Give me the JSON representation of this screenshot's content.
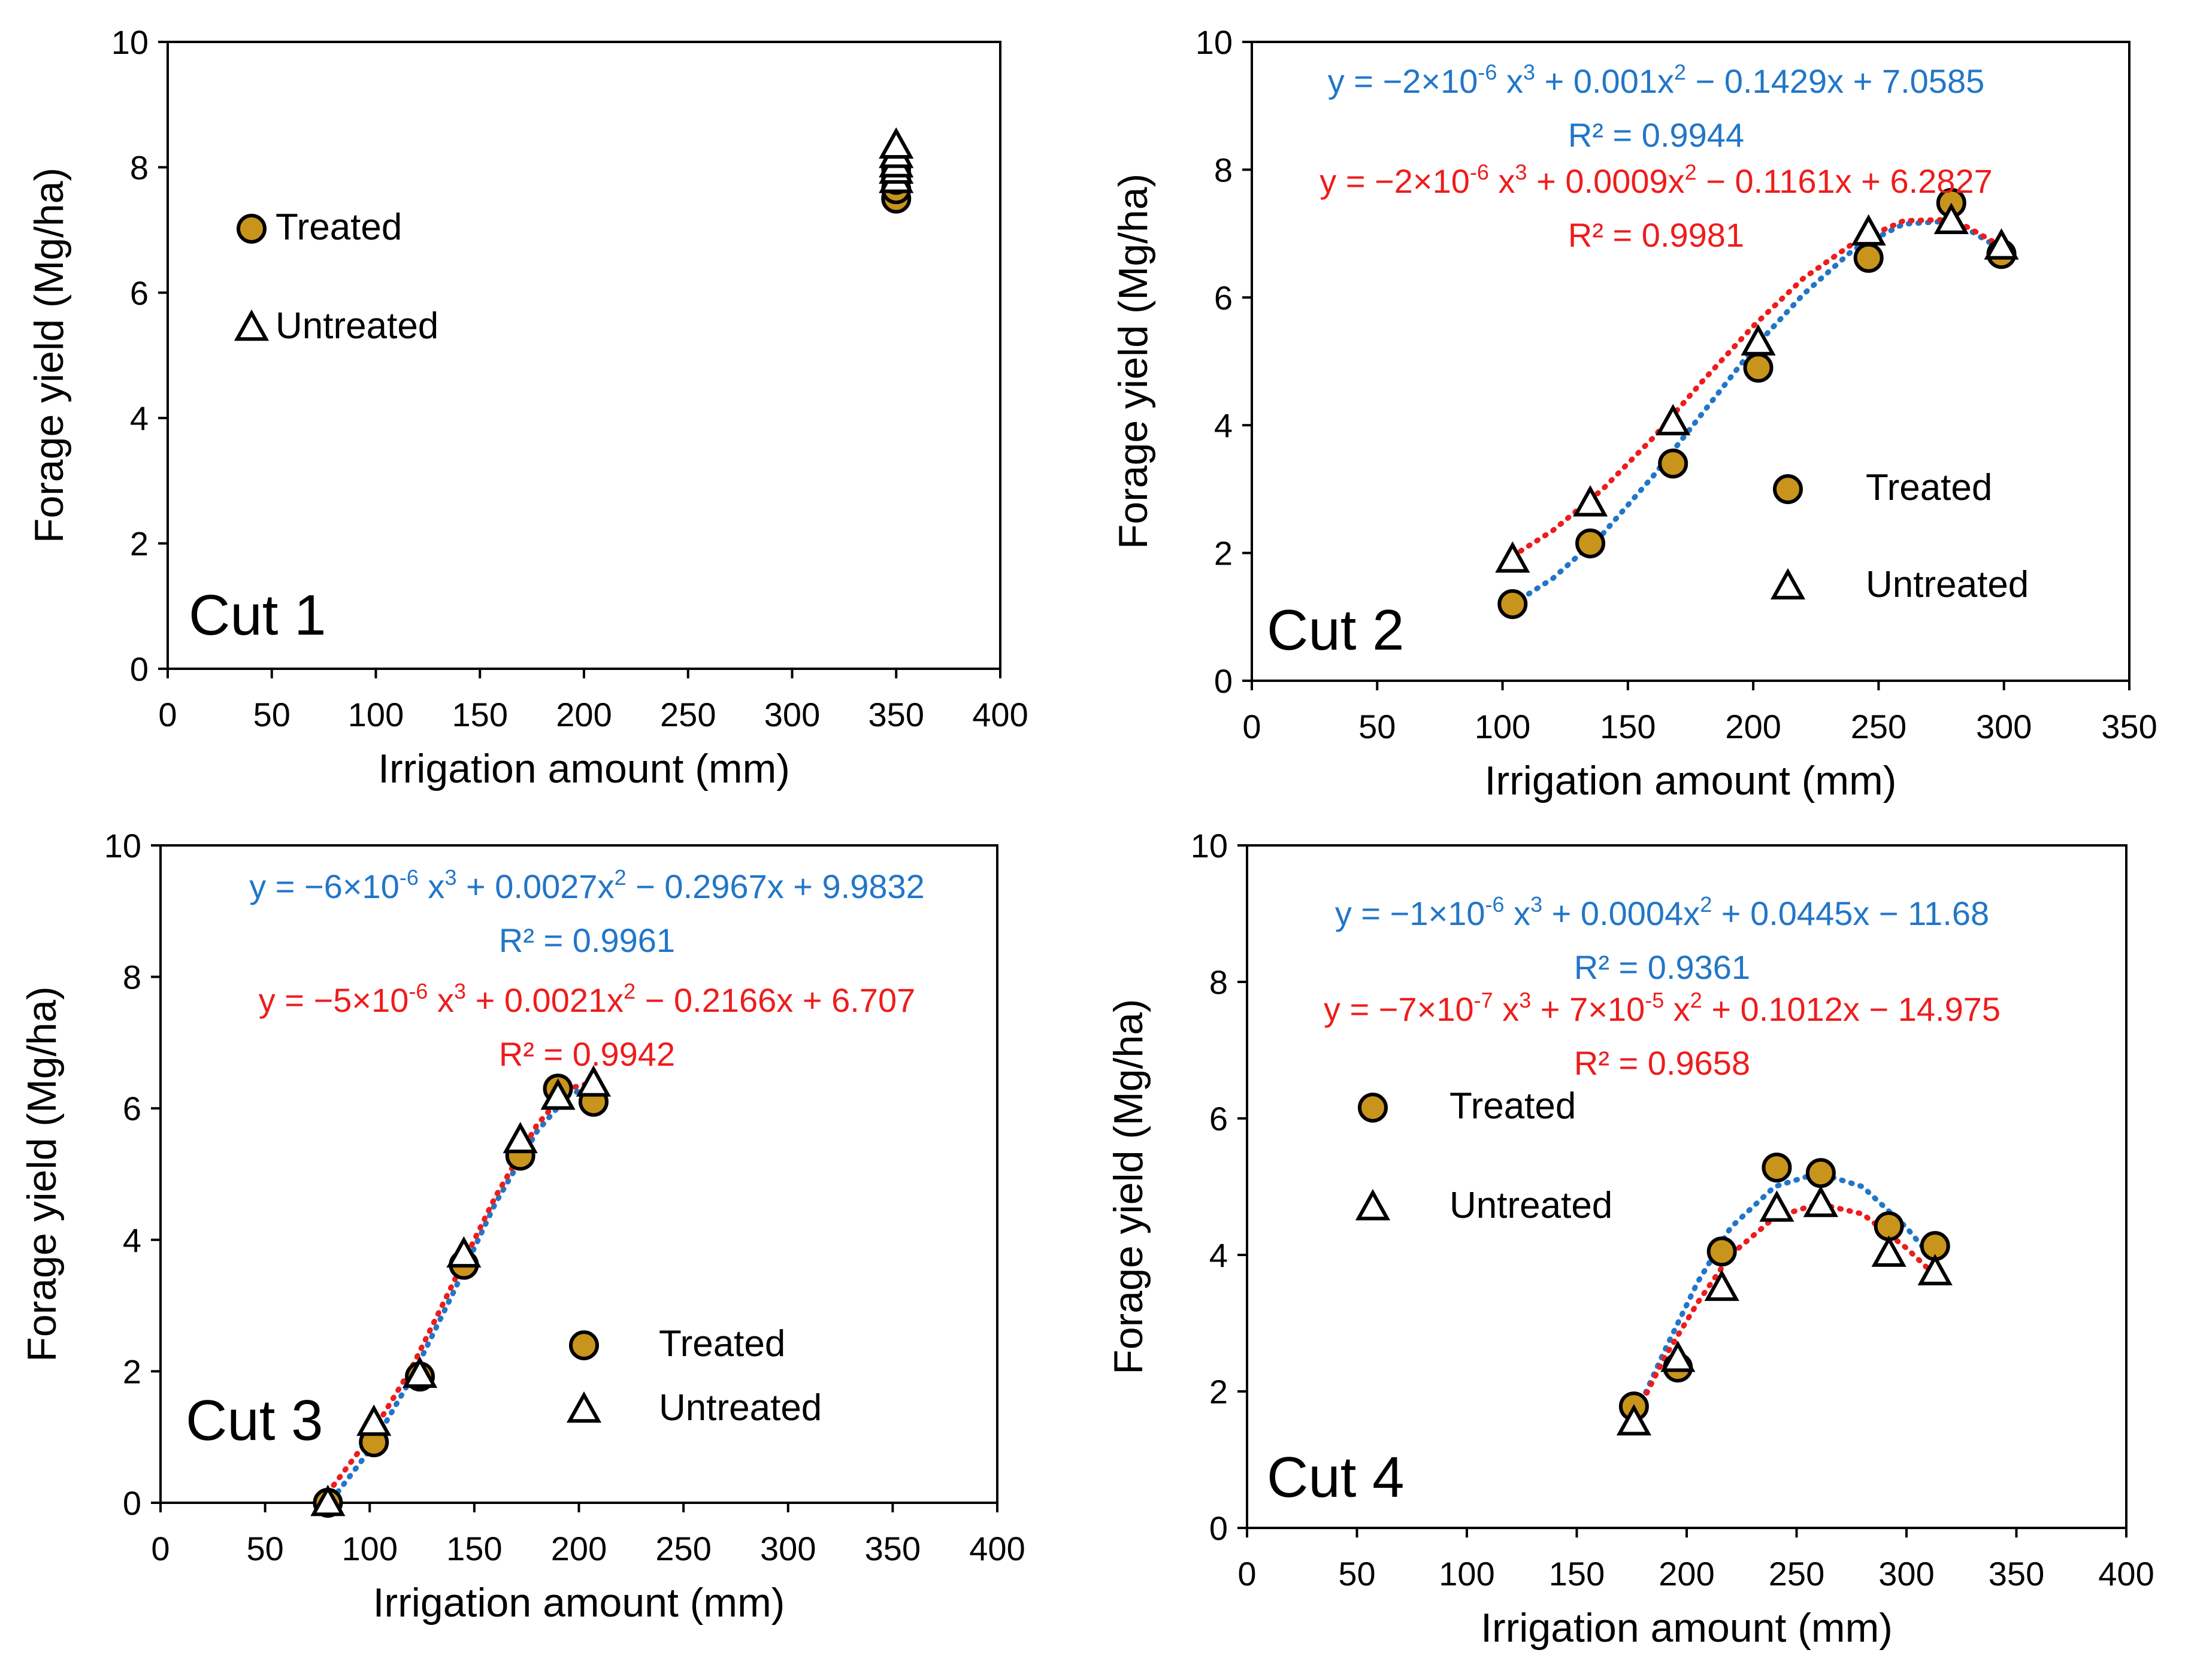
{
  "figure": {
    "xlabel": "Irrigation amount (mm)",
    "ylabel": "Forage yield (Mg/ha)",
    "colors": {
      "treated_fill": "#c8941c",
      "untreated_fill": "#ffffff",
      "treated_fit": "#2176c8",
      "untreated_fit": "#ee1c1c"
    }
  },
  "chart_data": [
    {
      "type": "scatter",
      "title": "Cut 1",
      "xlabel": "Irrigation amount (mm)",
      "ylabel": "Forage yield (Mg/ha)",
      "xlim": [
        0,
        400
      ],
      "ylim": [
        0,
        10
      ],
      "xticks": [
        "0",
        "50",
        "100",
        "150",
        "200",
        "250",
        "300",
        "350",
        "400"
      ],
      "yticks": [
        "0",
        "2",
        "4",
        "6",
        "8",
        "10"
      ],
      "legend_position": "left",
      "series": [
        {
          "name": "Treated",
          "marker": "circle",
          "x": [
            350,
            350,
            350,
            350,
            350
          ],
          "y": [
            7.5,
            7.65,
            7.8,
            7.9,
            8.0
          ]
        },
        {
          "name": "Untreated",
          "marker": "triangle",
          "x": [
            350,
            350,
            350,
            350,
            350
          ],
          "y": [
            7.8,
            7.95,
            8.05,
            8.2,
            8.35
          ]
        }
      ],
      "fits": []
    },
    {
      "type": "scatter",
      "title": "Cut 2",
      "xlabel": "Irrigation amount (mm)",
      "ylabel": "Forage yield (Mg/ha)",
      "xlim": [
        0,
        350
      ],
      "ylim": [
        0,
        10
      ],
      "xticks": [
        "0",
        "50",
        "100",
        "150",
        "200",
        "250",
        "300",
        "350"
      ],
      "yticks": [
        "0",
        "2",
        "4",
        "6",
        "8",
        "10"
      ],
      "legend_position": "lower-right",
      "series": [
        {
          "name": "Treated",
          "marker": "circle",
          "x": [
            104,
            135,
            168,
            202,
            246,
            279,
            299
          ],
          "y": [
            1.2,
            2.15,
            3.4,
            4.9,
            6.62,
            7.48,
            6.68
          ]
        },
        {
          "name": "Untreated",
          "marker": "triangle",
          "x": [
            104,
            135,
            168,
            202,
            246,
            279,
            299
          ],
          "y": [
            1.9,
            2.78,
            4.05,
            5.3,
            7.02,
            7.2,
            6.8
          ]
        }
      ],
      "fits": [
        {
          "series": "Treated",
          "equation": "y = −2×10^{-6} x^{3} + 0.001x^{2} − 0.1429x + 7.0585",
          "r2": "R² = 0.9944",
          "range": [
            104,
            299
          ],
          "points": [
            [
              104,
              1.2
            ],
            [
              120,
              1.6
            ],
            [
              140,
              2.3
            ],
            [
              160,
              3.2
            ],
            [
              180,
              4.2
            ],
            [
              200,
              5.2
            ],
            [
              220,
              6.05
            ],
            [
              240,
              6.75
            ],
            [
              260,
              7.15
            ],
            [
              280,
              7.2
            ],
            [
              299,
              6.75
            ]
          ]
        },
        {
          "series": "Untreated",
          "equation": "y = −2×10^{-6} x^{3} + 0.0009x^{2} − 0.1161x + 6.2827",
          "r2": "R² = 0.9981",
          "range": [
            104,
            299
          ],
          "points": [
            [
              104,
              1.95
            ],
            [
              120,
              2.35
            ],
            [
              140,
              3.0
            ],
            [
              160,
              3.8
            ],
            [
              180,
              4.7
            ],
            [
              200,
              5.55
            ],
            [
              220,
              6.3
            ],
            [
              240,
              6.85
            ],
            [
              260,
              7.2
            ],
            [
              280,
              7.22
            ],
            [
              299,
              6.8
            ]
          ]
        }
      ]
    },
    {
      "type": "scatter",
      "title": "Cut 3",
      "xlabel": "Irrigation amount (mm)",
      "ylabel": "Forage yield (Mg/ha)",
      "xlim": [
        0,
        400
      ],
      "ylim": [
        0,
        10
      ],
      "xticks": [
        "0",
        "50",
        "100",
        "150",
        "200",
        "250",
        "300",
        "350",
        "400"
      ],
      "yticks": [
        "0",
        "2",
        "4",
        "6",
        "8",
        "10"
      ],
      "legend_position": "lower-right",
      "series": [
        {
          "name": "Treated",
          "marker": "circle",
          "x": [
            80,
            102,
            124,
            145,
            172,
            190,
            207
          ],
          "y": [
            0.0,
            0.92,
            1.92,
            3.62,
            5.28,
            6.3,
            6.1
          ]
        },
        {
          "name": "Untreated",
          "marker": "triangle",
          "x": [
            80,
            102,
            124,
            145,
            172,
            190,
            207
          ],
          "y": [
            0.0,
            1.22,
            1.95,
            3.78,
            5.52,
            6.18,
            6.38
          ]
        }
      ],
      "fits": [
        {
          "series": "Treated",
          "equation": "y = −6×10^{-6} x^{3} + 0.0027x^{2} − 0.2967x + 9.9832",
          "r2": "R² = 0.9961",
          "range": [
            80,
            207
          ],
          "points": [
            [
              82,
              0.05
            ],
            [
              100,
              0.8
            ],
            [
              120,
              1.9
            ],
            [
              140,
              3.2
            ],
            [
              160,
              4.55
            ],
            [
              180,
              5.65
            ],
            [
              195,
              6.2
            ],
            [
              207,
              6.35
            ]
          ]
        },
        {
          "series": "Untreated",
          "equation": "y = −5×10^{-6} x^{3} + 0.0021x^{2} − 0.2166x + 6.707",
          "r2": "R² = 0.9942",
          "range": [
            80,
            207
          ],
          "points": [
            [
              80,
              0.15
            ],
            [
              100,
              1.0
            ],
            [
              120,
              2.05
            ],
            [
              140,
              3.35
            ],
            [
              160,
              4.65
            ],
            [
              180,
              5.75
            ],
            [
              195,
              6.3
            ],
            [
              207,
              6.4
            ]
          ]
        }
      ]
    },
    {
      "type": "scatter",
      "title": "Cut 4",
      "xlabel": "Irrigation amount (mm)",
      "ylabel": "Forage yield (Mg/ha)",
      "xlim": [
        0,
        400
      ],
      "ylim": [
        0,
        10
      ],
      "xticks": [
        "0",
        "50",
        "100",
        "150",
        "200",
        "250",
        "300",
        "350",
        "400"
      ],
      "yticks": [
        "0",
        "2",
        "4",
        "6",
        "8",
        "10"
      ],
      "legend_position": "left",
      "series": [
        {
          "name": "Treated",
          "marker": "circle",
          "x": [
            176,
            196,
            216,
            241,
            261,
            292,
            313
          ],
          "y": [
            1.78,
            2.35,
            4.05,
            5.28,
            5.2,
            4.42,
            4.13
          ]
        },
        {
          "name": "Untreated",
          "marker": "triangle",
          "x": [
            176,
            196,
            216,
            241,
            261,
            292,
            313
          ],
          "y": [
            1.55,
            2.48,
            3.52,
            4.68,
            4.75,
            4.02,
            3.75
          ]
        }
      ],
      "fits": [
        {
          "series": "Treated",
          "equation": "y = −1×10^{-6} x^{3} + 0.0004x^{2} + 0.0445x − 11.68",
          "r2": "R² = 0.9361",
          "range": [
            176,
            313
          ],
          "points": [
            [
              176,
              1.6
            ],
            [
              190,
              2.6
            ],
            [
              205,
              3.6
            ],
            [
              220,
              4.4
            ],
            [
              240,
              5.0
            ],
            [
              260,
              5.2
            ],
            [
              280,
              5.0
            ],
            [
              300,
              4.4
            ],
            [
              313,
              3.9
            ]
          ]
        },
        {
          "series": "Untreated",
          "equation": "y = −7×10^{-7} x^{3} + 7×10^{-5} x^{2} + 0.1012x − 14.975",
          "r2": "R² = 0.9658",
          "range": [
            176,
            313
          ],
          "points": [
            [
              176,
              1.6
            ],
            [
              190,
              2.5
            ],
            [
              205,
              3.3
            ],
            [
              220,
              4.0
            ],
            [
              240,
              4.55
            ],
            [
              260,
              4.75
            ],
            [
              280,
              4.6
            ],
            [
              300,
              4.1
            ],
            [
              313,
              3.7
            ]
          ]
        }
      ]
    }
  ]
}
